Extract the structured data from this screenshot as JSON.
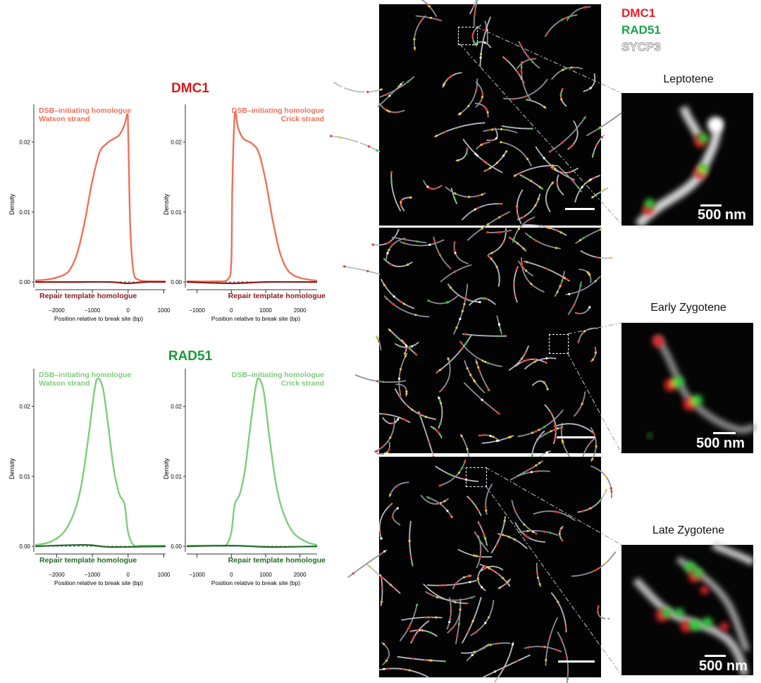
{
  "colors": {
    "dmc1_title": "#d7191c",
    "dmc1_curve": "#f07058",
    "dmc1_flat": "#8b1a1a",
    "rad51_title": "#1a9a3a",
    "rad51_curve": "#7fcc7a",
    "rad51_flat": "#1f6b2a",
    "legend_dmc1": "#e21f26",
    "legend_rad51": "#1aa34a",
    "legend_sycp3": "#c8c8c8"
  },
  "panels": {
    "dmc1": {
      "title": "DMC1",
      "watson_label_1": "DSB–initiating homologue",
      "watson_label_2": "Watson strand",
      "crick_label_1": "DSB–initiating homologue",
      "crick_label_2": "Crick strand",
      "repair_label": "Repair template homologue"
    },
    "rad51": {
      "title": "RAD51",
      "watson_label_1": "DSB–initiating homologue",
      "watson_label_2": "Watson strand",
      "crick_label_1": "DSB–initiating homologue",
      "crick_label_2": "Crick strand",
      "repair_label": "Repair template homologue"
    }
  },
  "axes": {
    "ylabel": "Density",
    "xlabel": "Position relative to break site (bp)",
    "yticks": [
      "0.00",
      "0.01",
      "0.02"
    ],
    "left_xticks": [
      "−2000",
      "−1000",
      "0",
      "1000"
    ],
    "right_xticks": [
      "−1000",
      "0",
      "1000",
      "2000"
    ]
  },
  "chart_data": [
    {
      "type": "line",
      "id": "dmc1-watson",
      "xlim": [
        -2600,
        1050
      ],
      "ylim": [
        -0.0008,
        0.0252
      ],
      "series": [
        {
          "x": [
            -2600,
            -2200,
            -1800,
            -1600,
            -1400,
            -1200,
            -1000,
            -800,
            -600,
            -400,
            -250,
            -100,
            -20,
            0,
            60,
            150,
            300,
            600,
            1050
          ],
          "y": [
            0.0002,
            0.0004,
            0.001,
            0.002,
            0.0045,
            0.009,
            0.0145,
            0.0185,
            0.0198,
            0.0205,
            0.021,
            0.0225,
            0.024,
            0.022,
            0.008,
            0.0015,
            0.0003,
            0.0001,
            0.0001
          ]
        },
        {
          "x": [
            -2600,
            -1500,
            -500,
            0,
            500,
            1050
          ],
          "y": [
            0.0,
            0.0,
            0.0,
            -0.0002,
            0.0,
            0.0
          ]
        }
      ]
    },
    {
      "type": "line",
      "id": "dmc1-crick",
      "xlim": [
        -1300,
        2500
      ],
      "ylim": [
        -0.0008,
        0.0252
      ],
      "series": [
        {
          "x": [
            -1300,
            -500,
            -100,
            0,
            30,
            100,
            200,
            350,
            600,
            800,
            1000,
            1200,
            1400,
            1600,
            1800,
            2000,
            2300,
            2500
          ],
          "y": [
            0.0001,
            0.0001,
            0.0004,
            0.003,
            0.014,
            0.024,
            0.022,
            0.0205,
            0.0198,
            0.0185,
            0.0145,
            0.009,
            0.0045,
            0.002,
            0.001,
            0.0006,
            0.0003,
            0.0002
          ]
        },
        {
          "x": [
            -1300,
            0,
            1000,
            2500
          ],
          "y": [
            0.0,
            -0.0002,
            0.0,
            0.0
          ]
        }
      ]
    },
    {
      "type": "line",
      "id": "rad51-watson",
      "xlim": [
        -2600,
        1050
      ],
      "ylim": [
        -0.0008,
        0.0252
      ],
      "series": [
        {
          "x": [
            -2600,
            -2200,
            -1800,
            -1500,
            -1300,
            -1100,
            -950,
            -850,
            -700,
            -550,
            -400,
            -250,
            -100,
            0,
            150,
            400,
            1050
          ],
          "y": [
            0.0002,
            0.0006,
            0.002,
            0.005,
            0.009,
            0.016,
            0.022,
            0.024,
            0.0225,
            0.017,
            0.011,
            0.0075,
            0.006,
            0.002,
            0.0002,
            0.0001,
            0.0001
          ]
        },
        {
          "x": [
            -2600,
            -1200,
            -500,
            1050
          ],
          "y": [
            0.0,
            0.0002,
            -0.0001,
            0.0
          ]
        }
      ]
    },
    {
      "type": "line",
      "id": "rad51-crick",
      "xlim": [
        -1300,
        2500
      ],
      "ylim": [
        -0.0008,
        0.0252
      ],
      "series": [
        {
          "x": [
            -1300,
            -400,
            -150,
            0,
            100,
            250,
            400,
            550,
            700,
            800,
            950,
            1100,
            1300,
            1500,
            1800,
            2200,
            2500
          ],
          "y": [
            0.0001,
            0.0001,
            0.0002,
            0.002,
            0.006,
            0.0075,
            0.011,
            0.017,
            0.0225,
            0.024,
            0.022,
            0.016,
            0.009,
            0.005,
            0.002,
            0.0006,
            0.0002
          ]
        },
        {
          "x": [
            -1300,
            0,
            1200,
            2500
          ],
          "y": [
            0.0,
            0.0001,
            -0.0001,
            0.0
          ]
        }
      ]
    }
  ],
  "legend": {
    "dmc1": "DMC1",
    "rad51": "RAD51",
    "sycp3": "SYCP3"
  },
  "stages": [
    {
      "label": "Leptotene",
      "scale": "500 nm"
    },
    {
      "label": "Early Zygotene",
      "scale": "500 nm"
    },
    {
      "label": "Late Zygotene",
      "scale": "500 nm"
    }
  ]
}
